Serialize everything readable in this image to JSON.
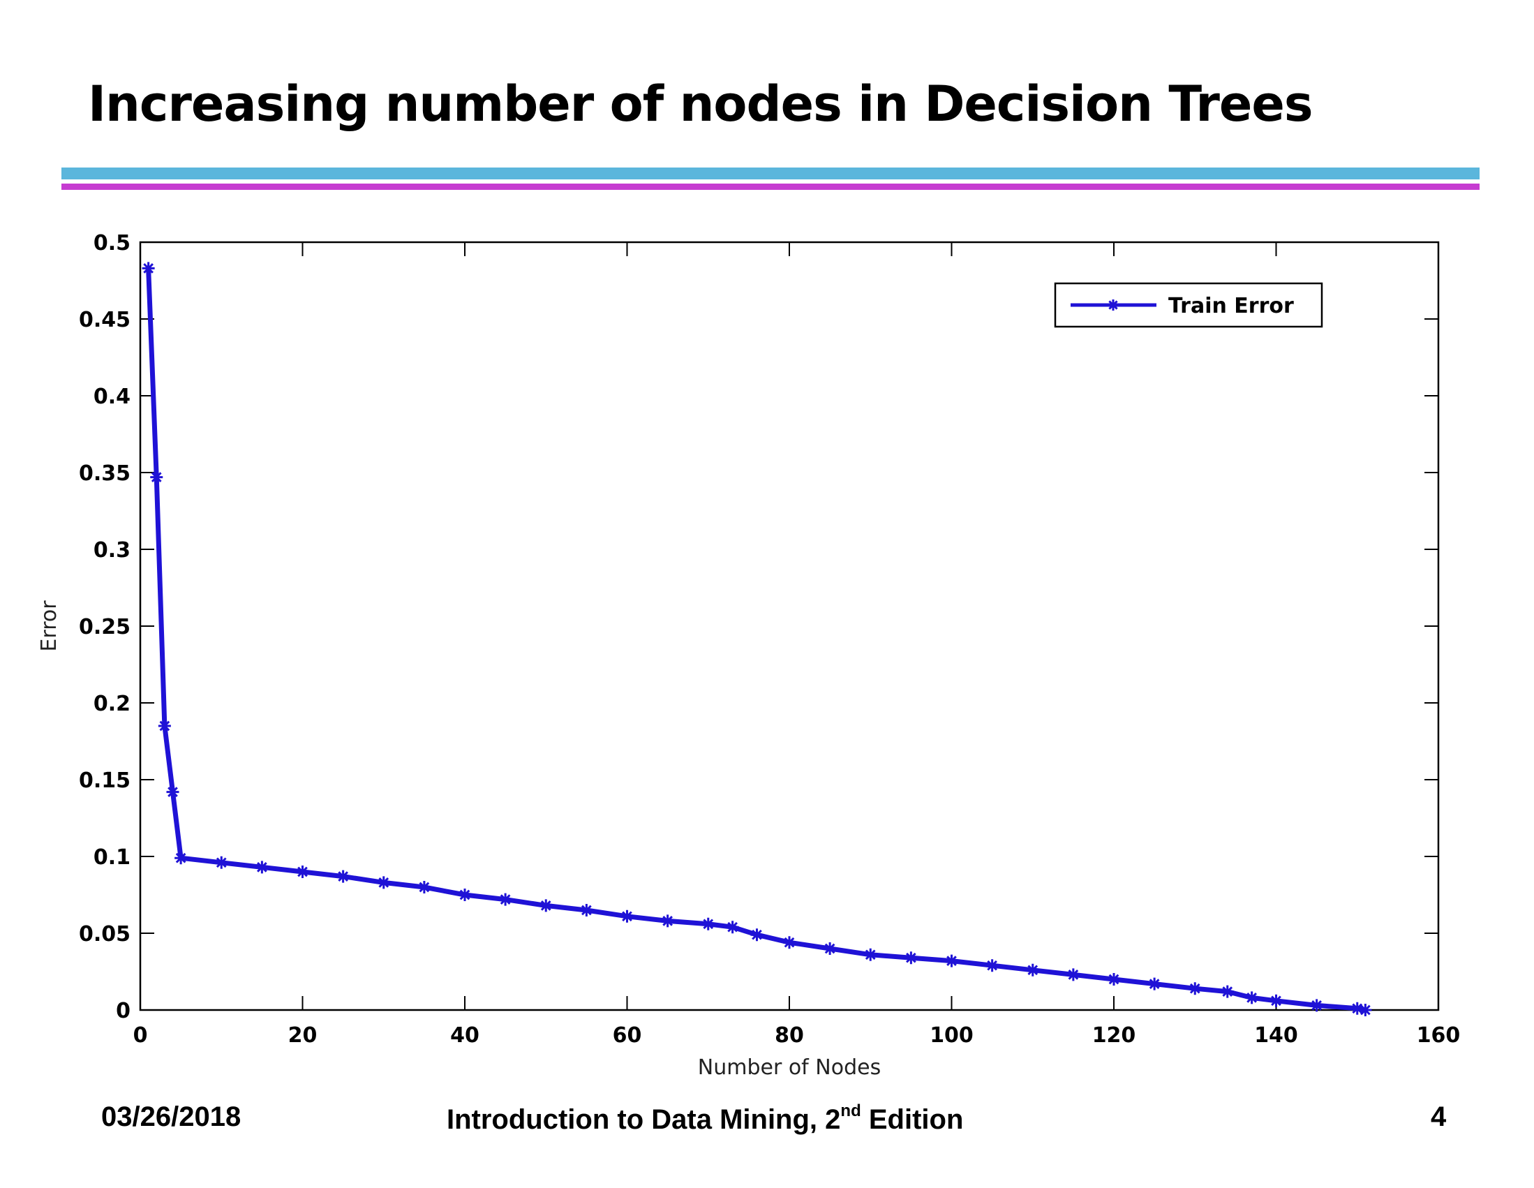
{
  "slide": {
    "title": "Increasing number of nodes in Decision Trees",
    "footer": {
      "date": "03/26/2018",
      "book_prefix": "Introduction to Data Mining, 2",
      "book_sup": "nd",
      "book_suffix": " Edition",
      "page": "4"
    },
    "colors": {
      "rule_top": "#5bb6dc",
      "rule_bottom": "#c63bd1",
      "series": "#1f12d6"
    }
  },
  "chart_data": {
    "type": "line",
    "title": "",
    "xlabel": "Number of Nodes",
    "ylabel": "Error",
    "xlim": [
      0,
      160
    ],
    "ylim": [
      0,
      0.5
    ],
    "xticks": [
      0,
      20,
      40,
      60,
      80,
      100,
      120,
      140,
      160
    ],
    "yticks": [
      0,
      0.05,
      0.1,
      0.15,
      0.2,
      0.25,
      0.3,
      0.35,
      0.4,
      0.45,
      0.5
    ],
    "grid": false,
    "legend": "top-right",
    "marker": "star",
    "series": [
      {
        "name": "Train Error",
        "color": "#1f12d6",
        "x": [
          1,
          2,
          3,
          4,
          5,
          10,
          15,
          20,
          25,
          30,
          35,
          40,
          45,
          50,
          55,
          60,
          65,
          70,
          73,
          76,
          80,
          85,
          90,
          95,
          100,
          105,
          110,
          115,
          120,
          125,
          130,
          134,
          137,
          140,
          145,
          150,
          151
        ],
        "y": [
          0.483,
          0.347,
          0.185,
          0.142,
          0.099,
          0.096,
          0.093,
          0.09,
          0.087,
          0.083,
          0.08,
          0.075,
          0.072,
          0.068,
          0.065,
          0.061,
          0.058,
          0.056,
          0.054,
          0.049,
          0.044,
          0.04,
          0.036,
          0.034,
          0.032,
          0.029,
          0.026,
          0.023,
          0.02,
          0.017,
          0.014,
          0.012,
          0.008,
          0.006,
          0.003,
          0.001,
          0.0
        ]
      }
    ]
  }
}
